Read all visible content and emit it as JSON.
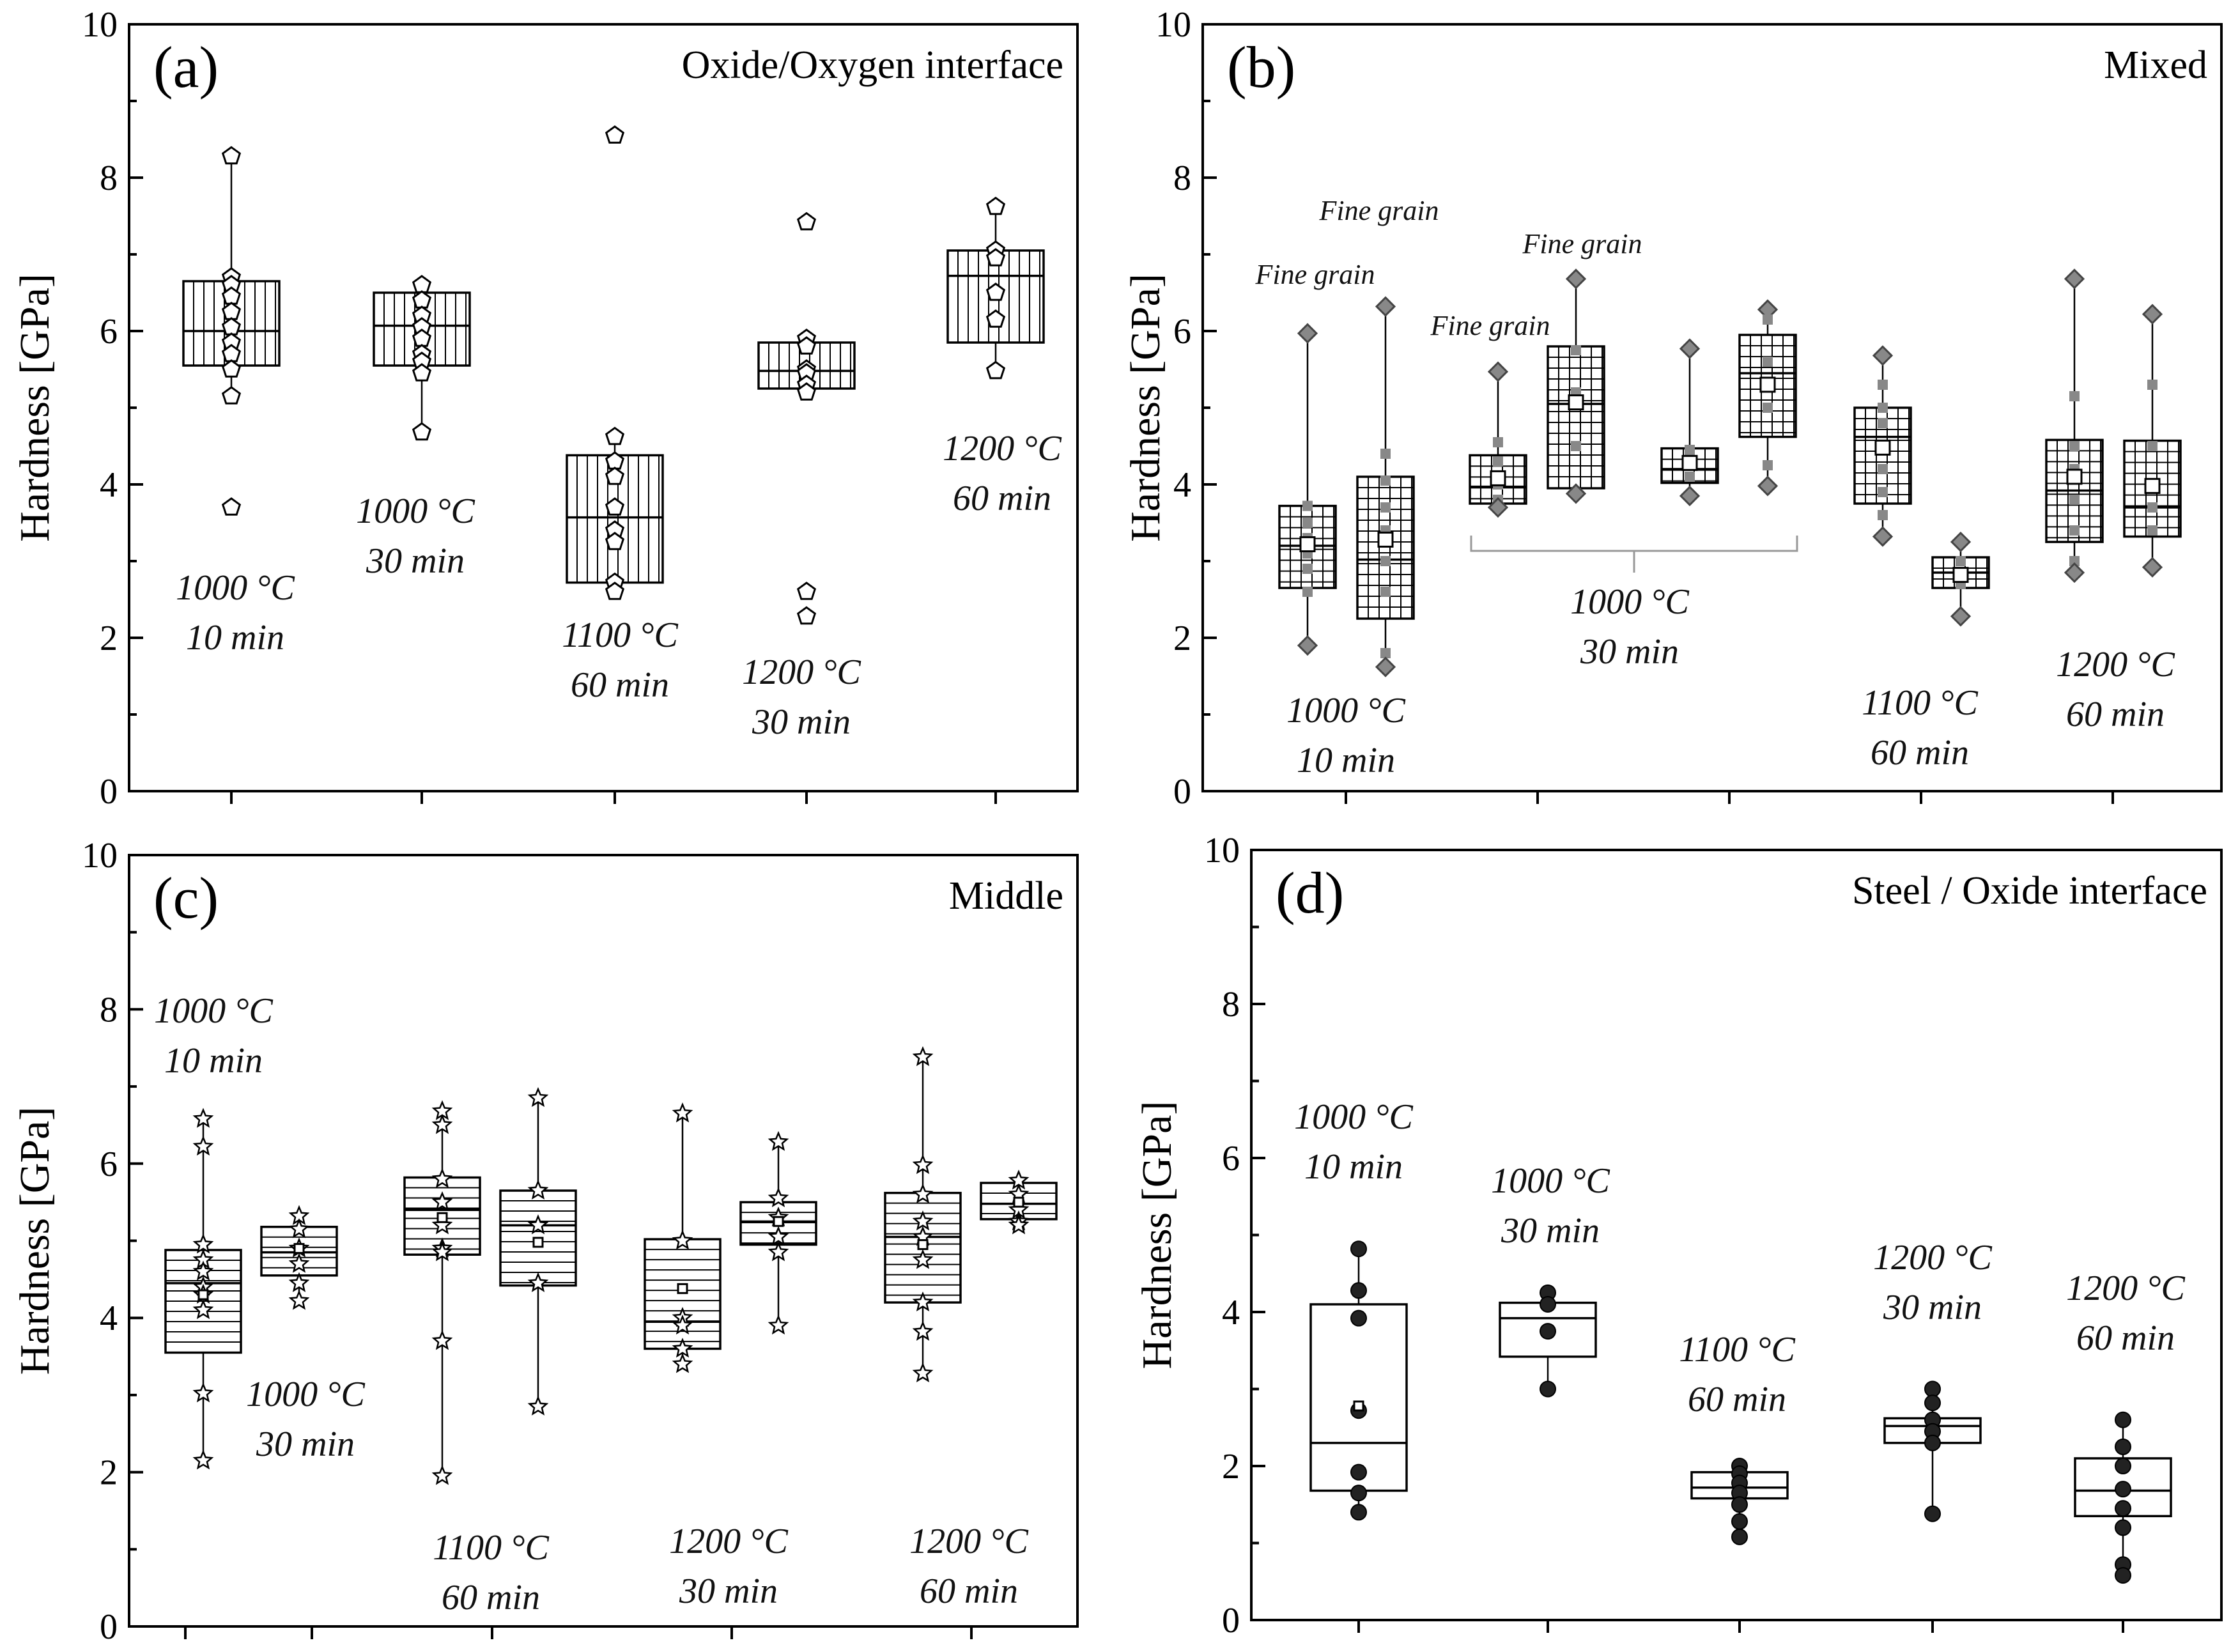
{
  "figure": {
    "ylabel": "Hardness [GPa]",
    "yticks": [
      0,
      2,
      4,
      6,
      8,
      10
    ],
    "ylim": [
      0,
      10
    ]
  },
  "chart_data": [
    {
      "type": "box",
      "panel": "(a)",
      "title": "Oxide/Oxygen interface",
      "ylabel": "Hardness [GPa]",
      "ylim": [
        0,
        10
      ],
      "hatch": "vertical",
      "marker": "pentagon",
      "groups": [
        {
          "label_temp": "1000 °C",
          "label_time": "10 min",
          "q1": 5.55,
          "median": 6.0,
          "q3": 6.65,
          "whisker_low": 5.15,
          "whisker_high": 8.28,
          "points": [
            8.28,
            6.7,
            6.6,
            6.45,
            6.25,
            6.05,
            5.85,
            5.7,
            5.5,
            5.15,
            3.7
          ]
        },
        {
          "label_temp": "1000 °C",
          "label_time": "30 min",
          "q1": 5.55,
          "median": 6.07,
          "q3": 6.5,
          "whisker_low": 4.68,
          "whisker_high": 6.6,
          "points": [
            6.6,
            6.4,
            6.2,
            6.05,
            5.9,
            5.7,
            5.6,
            5.45,
            4.68
          ]
        },
        {
          "label_temp": "1100 °C",
          "label_time": "60 min",
          "q1": 2.72,
          "median": 3.57,
          "q3": 4.38,
          "whisker_low": 2.6,
          "whisker_high": 4.62,
          "points": [
            8.55,
            4.62,
            4.3,
            4.1,
            3.7,
            3.4,
            3.25,
            2.72,
            2.6
          ]
        },
        {
          "label_temp": "1200 °C",
          "label_time": "30 min",
          "q1": 5.25,
          "median": 5.48,
          "q3": 5.85,
          "whisker_low": 5.15,
          "whisker_high": 5.9,
          "points": [
            7.42,
            5.9,
            5.8,
            5.5,
            5.45,
            5.3,
            5.2,
            2.6,
            2.28
          ]
        },
        {
          "label_temp": "1200 °C",
          "label_time": "60 min",
          "q1": 5.85,
          "median": 6.72,
          "q3": 7.05,
          "whisker_low": 5.48,
          "whisker_high": 7.62,
          "points": [
            7.62,
            7.05,
            6.95,
            6.5,
            6.15,
            5.48
          ]
        }
      ]
    },
    {
      "type": "box",
      "panel": "(b)",
      "title": "Mixed",
      "ylabel": "Hardness [GPa]",
      "ylim": [
        0,
        10
      ],
      "hatch": "grid",
      "marker": "diamond",
      "annotations": [
        "Fine grain",
        "Fine grain",
        "Fine grain",
        "Fine grain"
      ],
      "group_labels": [
        {
          "temp": "1000 °C",
          "time": "10 min"
        },
        {
          "temp": "1000 °C",
          "time": "30 min"
        },
        {
          "temp": "1100 °C",
          "time": "60 min"
        },
        {
          "temp": "1200 °C",
          "time": "60 min"
        }
      ],
      "groups": [
        {
          "q1": 2.65,
          "median": 3.2,
          "q3": 3.72,
          "mean": 3.22,
          "whisker_low": 1.9,
          "whisker_high": 5.97,
          "points": [
            5.97,
            3.72,
            3.5,
            3.3,
            3.1,
            2.9,
            2.6,
            1.9
          ]
        },
        {
          "q1": 2.25,
          "median": 3.02,
          "q3": 4.1,
          "mean": 3.28,
          "whisker_low": 1.62,
          "whisker_high": 6.32,
          "points": [
            6.32,
            4.4,
            4.05,
            3.7,
            3.4,
            3.0,
            2.6,
            1.8,
            1.62
          ]
        },
        {
          "q1": 3.75,
          "median": 3.97,
          "q3": 4.38,
          "mean": 4.08,
          "whisker_low": 3.7,
          "whisker_high": 5.47,
          "points": [
            5.47,
            4.55,
            4.3,
            4.0,
            3.8,
            3.7
          ]
        },
        {
          "q1": 3.95,
          "median": 5.05,
          "q3": 5.8,
          "mean": 5.07,
          "whisker_low": 3.88,
          "whisker_high": 6.68,
          "points": [
            6.68,
            5.75,
            5.2,
            4.5,
            3.88
          ]
        },
        {
          "q1": 4.02,
          "median": 4.2,
          "q3": 4.47,
          "mean": 4.28,
          "whisker_low": 3.85,
          "whisker_high": 5.77,
          "points": [
            5.77,
            4.45,
            4.3,
            4.1,
            3.85
          ]
        },
        {
          "q1": 4.62,
          "median": 5.45,
          "q3": 5.95,
          "mean": 5.3,
          "whisker_low": 3.98,
          "whisker_high": 6.28,
          "points": [
            6.28,
            6.15,
            5.6,
            5.3,
            5.0,
            4.25,
            3.98
          ]
        },
        {
          "q1": 3.75,
          "median": 4.62,
          "q3": 5.0,
          "mean": 4.48,
          "whisker_low": 3.32,
          "whisker_high": 5.68,
          "points": [
            5.68,
            5.3,
            5.0,
            4.8,
            4.5,
            4.2,
            3.9,
            3.6,
            3.32
          ]
        },
        {
          "q1": 2.65,
          "median": 2.85,
          "q3": 3.05,
          "mean": 2.82,
          "whisker_low": 2.28,
          "whisker_high": 3.25,
          "points": [
            3.25,
            3.0,
            2.85,
            2.7,
            2.28
          ]
        },
        {
          "q1": 3.25,
          "median": 3.92,
          "q3": 4.58,
          "mean": 4.1,
          "whisker_low": 2.85,
          "whisker_high": 6.68,
          "points": [
            6.68,
            5.15,
            4.5,
            4.2,
            3.8,
            3.4,
            3.0,
            2.85
          ]
        },
        {
          "q1": 3.32,
          "median": 3.7,
          "q3": 4.57,
          "mean": 3.98,
          "whisker_low": 2.92,
          "whisker_high": 6.22,
          "points": [
            6.22,
            5.3,
            4.5,
            4.0,
            3.7,
            3.4,
            2.92
          ]
        }
      ]
    },
    {
      "type": "box",
      "panel": "(c)",
      "title": "Middle",
      "ylabel": "Hardness [GPa]",
      "ylim": [
        0,
        10
      ],
      "hatch": "horizontal",
      "marker": "star",
      "group_labels": [
        {
          "temp": "1000 °C",
          "time": "10 min"
        },
        {
          "temp": "1000 °C",
          "time": "30 min"
        },
        {
          "temp": "1100 °C",
          "time": "60 min"
        },
        {
          "temp": "1200 °C",
          "time": "30 min"
        },
        {
          "temp": "1200 °C",
          "time": "60 min"
        }
      ],
      "groups": [
        {
          "q1": 3.55,
          "median": 4.45,
          "q3": 4.88,
          "mean": 4.3,
          "whisker_low": 2.15,
          "whisker_high": 6.58,
          "points": [
            6.58,
            6.22,
            4.95,
            4.75,
            4.6,
            4.4,
            4.3,
            4.1,
            3.02,
            2.15
          ]
        },
        {
          "q1": 4.55,
          "median": 4.85,
          "q3": 5.18,
          "mean": 4.9,
          "whisker_low": 4.22,
          "whisker_high": 5.32,
          "points": [
            5.32,
            5.15,
            4.9,
            4.7,
            4.45,
            4.22
          ]
        },
        {
          "q1": 4.82,
          "median": 5.4,
          "q3": 5.82,
          "mean": 5.3,
          "whisker_low": 1.95,
          "whisker_high": 6.68,
          "points": [
            6.68,
            6.5,
            5.8,
            5.5,
            5.2,
            4.9,
            4.85,
            3.7,
            1.95
          ]
        },
        {
          "q1": 4.42,
          "median": 5.2,
          "q3": 5.65,
          "mean": 4.98,
          "whisker_low": 2.85,
          "whisker_high": 6.85,
          "points": [
            6.85,
            5.65,
            5.2,
            4.45,
            2.85
          ]
        },
        {
          "q1": 3.6,
          "median": 3.95,
          "q3": 5.02,
          "mean": 4.38,
          "whisker_low": 3.4,
          "whisker_high": 6.65,
          "points": [
            6.65,
            5.0,
            4.0,
            3.9,
            3.6,
            3.4
          ]
        },
        {
          "q1": 4.95,
          "median": 5.25,
          "q3": 5.5,
          "mean": 5.25,
          "whisker_low": 3.9,
          "whisker_high": 6.28,
          "points": [
            6.28,
            5.55,
            5.3,
            5.05,
            4.85,
            3.9
          ]
        },
        {
          "q1": 4.2,
          "median": 5.05,
          "q3": 5.62,
          "mean": 4.95,
          "whisker_low": 3.28,
          "whisker_high": 7.38,
          "points": [
            7.38,
            5.98,
            5.6,
            5.25,
            5.05,
            4.75,
            4.2,
            3.82,
            3.28
          ]
        },
        {
          "q1": 5.28,
          "median": 5.48,
          "q3": 5.75,
          "mean": 5.5,
          "whisker_low": 5.2,
          "whisker_high": 5.78,
          "points": [
            5.78,
            5.6,
            5.4,
            5.25,
            5.2
          ]
        }
      ]
    },
    {
      "type": "box",
      "panel": "(d)",
      "title": "Steel / Oxide interface",
      "ylabel": "Hardness [GPa]",
      "ylim": [
        0,
        10
      ],
      "hatch": "none",
      "marker": "filled-circle",
      "groups": [
        {
          "label_temp": "1000 °C",
          "label_time": "10 min",
          "q1": 1.68,
          "median": 2.3,
          "q3": 4.1,
          "mean": 2.78,
          "whisker_low": 1.4,
          "whisker_high": 4.82,
          "points": [
            4.82,
            4.28,
            3.92,
            2.72,
            1.92,
            1.65,
            1.4
          ]
        },
        {
          "label_temp": "1000 °C",
          "label_time": "30 min",
          "q1": 3.42,
          "median": 3.92,
          "q3": 4.12,
          "whisker_low": 3.0,
          "whisker_high": 4.25,
          "points": [
            4.25,
            4.1,
            3.75,
            3.0
          ]
        },
        {
          "label_temp": "1100 °C",
          "label_time": "60 min",
          "q1": 1.58,
          "median": 1.72,
          "q3": 1.92,
          "whisker_low": 1.08,
          "whisker_high": 2.0,
          "points": [
            2.0,
            1.9,
            1.78,
            1.65,
            1.5,
            1.28,
            1.08
          ]
        },
        {
          "label_temp": "1200 °C",
          "label_time": "30 min",
          "q1": 2.3,
          "median": 2.52,
          "q3": 2.62,
          "whisker_low": 1.38,
          "whisker_high": 3.0,
          "points": [
            3.0,
            2.82,
            2.6,
            2.45,
            2.3,
            1.38
          ]
        },
        {
          "label_temp": "1200 °C",
          "label_time": "60 min",
          "q1": 1.35,
          "median": 1.68,
          "q3": 2.1,
          "whisker_low": 0.58,
          "whisker_high": 2.6,
          "points": [
            2.6,
            2.25,
            2.0,
            1.7,
            1.45,
            1.2,
            0.72,
            0.58
          ]
        }
      ]
    }
  ]
}
